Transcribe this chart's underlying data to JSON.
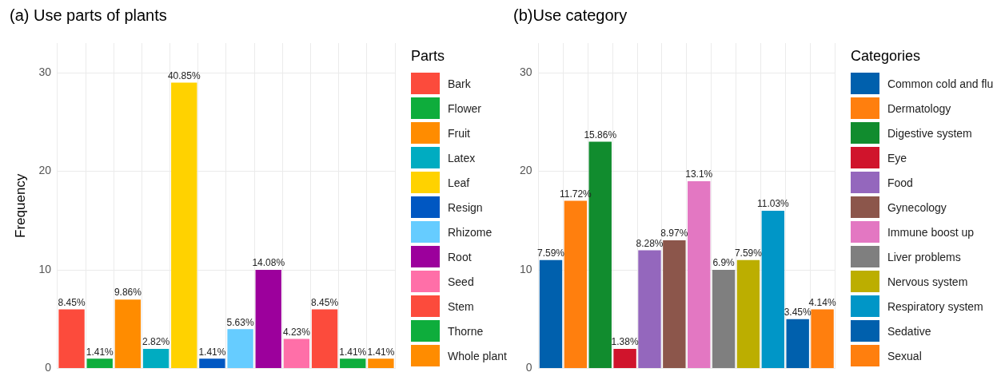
{
  "chart_data": [
    {
      "type": "bar",
      "title": "(a) Use parts of plants",
      "ylabel": "Frequency",
      "legend_title": "Parts",
      "legend": "right",
      "grid": true,
      "tick_labels": "y",
      "ylim": [
        0,
        33
      ],
      "yticks": [
        0,
        10,
        20,
        30
      ],
      "categories": [
        null,
        null,
        null,
        null,
        null,
        null,
        null,
        null,
        null,
        null,
        null,
        null
      ],
      "series": [
        {
          "name": "Bark",
          "color": "#fc4b3c",
          "values": [
            6,
            null,
            null,
            null,
            null,
            null,
            null,
            null,
            null,
            null,
            null,
            null
          ]
        },
        {
          "name": "Flower",
          "color": "#0ead3c",
          "values": [
            null,
            1,
            null,
            null,
            null,
            null,
            null,
            null,
            null,
            null,
            null,
            null
          ]
        },
        {
          "name": "Fruit",
          "color": "#ff8c00",
          "values": [
            null,
            null,
            7,
            null,
            null,
            null,
            null,
            null,
            null,
            null,
            null,
            null
          ]
        },
        {
          "name": "Latex",
          "color": "#00acc1",
          "values": [
            null,
            null,
            null,
            2,
            null,
            null,
            null,
            null,
            null,
            null,
            null,
            null
          ]
        },
        {
          "name": "Leaf",
          "color": "#ffd200",
          "values": [
            null,
            null,
            null,
            null,
            29,
            null,
            null,
            null,
            null,
            null,
            null,
            null
          ]
        },
        {
          "name": "Resign",
          "color": "#0057c2",
          "values": [
            null,
            null,
            null,
            null,
            null,
            1,
            null,
            null,
            null,
            null,
            null,
            null
          ]
        },
        {
          "name": "Rhizome",
          "color": "#66ccff",
          "values": [
            null,
            null,
            null,
            null,
            null,
            null,
            4,
            null,
            null,
            null,
            null,
            null
          ]
        },
        {
          "name": "Root",
          "color": "#9c009c",
          "values": [
            null,
            null,
            null,
            null,
            null,
            null,
            null,
            10,
            null,
            null,
            null,
            null
          ]
        },
        {
          "name": "Seed",
          "color": "#ff6fa8",
          "values": [
            null,
            null,
            null,
            null,
            null,
            null,
            null,
            null,
            3,
            null,
            null,
            null
          ]
        },
        {
          "name": "Stem",
          "color": "#fc4b3c",
          "values": [
            null,
            null,
            null,
            null,
            null,
            null,
            null,
            null,
            null,
            6,
            null,
            null
          ]
        },
        {
          "name": "Thorne",
          "color": "#0ead3c",
          "values": [
            null,
            null,
            null,
            null,
            null,
            null,
            null,
            null,
            null,
            null,
            1,
            null
          ]
        },
        {
          "name": "Whole plant",
          "color": "#ff8c00",
          "values": [
            null,
            null,
            null,
            null,
            null,
            null,
            null,
            null,
            null,
            null,
            null,
            1
          ]
        }
      ],
      "annotations": [
        {
          "text": "8.45%",
          "y": 6
        },
        {
          "text": "1.41%",
          "y": 1
        },
        {
          "text": "9.86%",
          "y": 7
        },
        {
          "text": "2.82%",
          "y": 2
        },
        {
          "text": "40.85%",
          "y": 29
        },
        {
          "text": "1.41%",
          "y": 1
        },
        {
          "text": "5.63%",
          "y": 4
        },
        {
          "text": "14.08%",
          "y": 10
        },
        {
          "text": "4.23%",
          "y": 3
        },
        {
          "text": "8.45%",
          "y": 6
        },
        {
          "text": "1.41%",
          "y": 1
        },
        {
          "text": "1.41%",
          "y": 1
        }
      ]
    },
    {
      "type": "bar",
      "title": "(b)Use category",
      "legend_title": "Categories",
      "legend": "right",
      "grid": true,
      "tick_labels": "y",
      "ylim": [
        0,
        33
      ],
      "yticks": [
        0,
        10,
        20,
        30
      ],
      "categories": [
        null,
        null,
        null,
        null,
        null,
        null,
        null,
        null,
        null,
        null,
        null,
        null
      ],
      "series": [
        {
          "name": "Common cold and flu",
          "color": "#0060ad",
          "values": [
            11,
            null,
            null,
            null,
            null,
            null,
            null,
            null,
            null,
            null,
            null,
            null
          ]
        },
        {
          "name": "Dermatology",
          "color": "#ff7f0e",
          "values": [
            null,
            17,
            null,
            null,
            null,
            null,
            null,
            null,
            null,
            null,
            null,
            null
          ]
        },
        {
          "name": "Digestive system",
          "color": "#118c2e",
          "values": [
            null,
            null,
            23,
            null,
            null,
            null,
            null,
            null,
            null,
            null,
            null,
            null
          ]
        },
        {
          "name": "Eye",
          "color": "#d0142c",
          "values": [
            null,
            null,
            null,
            2,
            null,
            null,
            null,
            null,
            null,
            null,
            null,
            null
          ]
        },
        {
          "name": "Food",
          "color": "#9467bd",
          "values": [
            null,
            null,
            null,
            null,
            12,
            null,
            null,
            null,
            null,
            null,
            null,
            null
          ]
        },
        {
          "name": "Gynecology",
          "color": "#8c564b",
          "values": [
            null,
            null,
            null,
            null,
            null,
            13,
            null,
            null,
            null,
            null,
            null,
            null
          ]
        },
        {
          "name": "Immune boost up",
          "color": "#e377c2",
          "values": [
            null,
            null,
            null,
            null,
            null,
            null,
            19,
            null,
            null,
            null,
            null,
            null
          ]
        },
        {
          "name": "Liver problems",
          "color": "#7f7f7f",
          "values": [
            null,
            null,
            null,
            null,
            null,
            null,
            null,
            10,
            null,
            null,
            null,
            null
          ]
        },
        {
          "name": "Nervous system",
          "color": "#bcae00",
          "values": [
            null,
            null,
            null,
            null,
            null,
            null,
            null,
            null,
            11,
            null,
            null,
            null
          ]
        },
        {
          "name": "Respiratory system",
          "color": "#0096c7",
          "values": [
            null,
            null,
            null,
            null,
            null,
            null,
            null,
            null,
            null,
            16,
            null,
            null
          ]
        },
        {
          "name": "Sedative",
          "color": "#0060ad",
          "values": [
            null,
            null,
            null,
            null,
            null,
            null,
            null,
            null,
            null,
            null,
            5,
            null
          ]
        },
        {
          "name": "Sexual",
          "color": "#ff7f0e",
          "values": [
            null,
            null,
            null,
            null,
            null,
            null,
            null,
            null,
            null,
            null,
            null,
            6
          ]
        }
      ],
      "annotations": [
        {
          "text": "7.59%",
          "y": 11
        },
        {
          "text": "11.72%",
          "y": 17
        },
        {
          "text": "15.86%",
          "y": 23
        },
        {
          "text": "1.38%",
          "y": 2
        },
        {
          "text": "8.28%",
          "y": 12
        },
        {
          "text": "8.97%",
          "y": 13
        },
        {
          "text": "13.1%",
          "y": 19
        },
        {
          "text": "6.9%",
          "y": 10
        },
        {
          "text": "7.59%",
          "y": 11
        },
        {
          "text": "11.03%",
          "y": 16
        },
        {
          "text": "3.45%",
          "y": 5
        },
        {
          "text": "4.14%",
          "y": 6
        }
      ]
    }
  ]
}
